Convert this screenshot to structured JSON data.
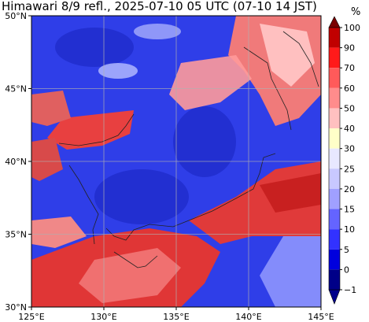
{
  "title": "Himawari 8/9 refl., 2025-07-10 05 UTC (07-10 14 JST)",
  "map": {
    "lat_labels": [
      "50°N",
      "45°N",
      "40°N",
      "35°N",
      "30°N"
    ],
    "lat_values": [
      50,
      45,
      40,
      35,
      30
    ],
    "lon_labels": [
      "125°E",
      "130°E",
      "135°E",
      "140°E",
      "145°E"
    ],
    "lon_values": [
      125,
      130,
      135,
      140,
      145
    ],
    "extent": {
      "lon": [
        125,
        145
      ],
      "lat": [
        30,
        50
      ]
    }
  },
  "colorbar": {
    "unit": "%",
    "ticks": [
      "100",
      "90",
      "70",
      "60",
      "50",
      "40",
      "30",
      "25",
      "20",
      "15",
      "10",
      "5",
      "0",
      "−1"
    ],
    "colors": [
      "#7a0000",
      "#c00000",
      "#ff1a1a",
      "#ff5a5a",
      "#ff8c8c",
      "#ffc0c0",
      "#ffffc8",
      "#e8e8ff",
      "#c8c8ff",
      "#a0a0ff",
      "#6464ff",
      "#3232ff",
      "#0000dd",
      "#000088"
    ],
    "over_color": "#7a0000",
    "under_color": "#00008b"
  }
}
